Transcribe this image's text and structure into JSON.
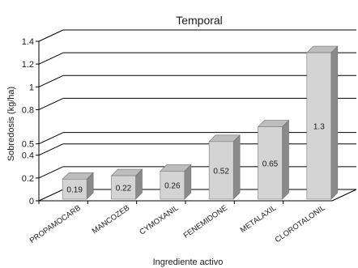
{
  "chart_data": {
    "type": "bar",
    "title": "Temporal",
    "xlabel": "Ingrediente activo",
    "ylabel": "Sobredosis (kg/ha)",
    "categories": [
      "PROPAMOCARB",
      "MANCOZEB",
      "CYMOXANIL",
      "FENEMIDONE",
      "METALAXIL",
      "CLOROTALONIL"
    ],
    "values": [
      0.19,
      0.22,
      0.26,
      0.52,
      0.65,
      1.3
    ],
    "data_labels": [
      "0.19",
      "0.22",
      "0.26",
      "0.52",
      "0.65",
      "1.3"
    ],
    "yticks": [
      0,
      0.2,
      0.4,
      0.5,
      0.8,
      1,
      1.2,
      1.4
    ],
    "ytick_labels": [
      "0",
      "0.2",
      "0.4",
      "0.5",
      "0.8",
      "1",
      "1.2",
      "1.4"
    ],
    "ylim": [
      0,
      1.4
    ],
    "grid": true,
    "style": "3d-bar",
    "colors": {
      "bar_front": "#d4d4d4",
      "bar_side": "#8a8a8a",
      "bar_top": "#bdbdbd",
      "grid": "#000000"
    }
  }
}
